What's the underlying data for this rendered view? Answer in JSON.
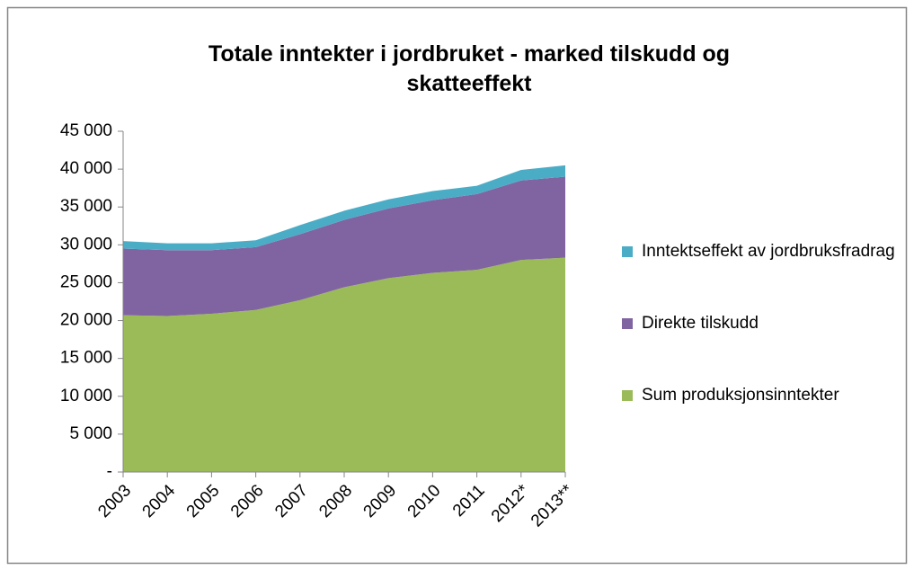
{
  "chart_data": {
    "type": "stacked_area",
    "title": "Totale inntekter i jordbruket - marked tilskudd og skatteeffekt",
    "categories": [
      "2003",
      "2004",
      "2005",
      "2006",
      "2007",
      "2008",
      "2009",
      "2010",
      "2011",
      "2012*",
      "2013**"
    ],
    "series": [
      {
        "name": "Sum produksjonsinntekter",
        "color": "#9bbb59",
        "values": [
          20700,
          20600,
          20900,
          21400,
          22700,
          24400,
          25600,
          26300,
          26700,
          28000,
          28300
        ]
      },
      {
        "name": "Direkte tilskudd",
        "color": "#8064a2",
        "values": [
          8800,
          8700,
          8400,
          8300,
          8700,
          8900,
          9200,
          9600,
          10000,
          10500,
          10700
        ]
      },
      {
        "name": "Inntektseffekt av jordbruksfradrag",
        "color": "#4bacc6",
        "values": [
          1000,
          900,
          900,
          900,
          1200,
          1200,
          1200,
          1200,
          1100,
          1400,
          1500
        ]
      }
    ],
    "ylim": [
      0,
      45000
    ],
    "yticks": [
      {
        "value": 0,
        "label": "-"
      },
      {
        "value": 5000,
        "label": "5 000"
      },
      {
        "value": 10000,
        "label": "10 000"
      },
      {
        "value": 15000,
        "label": "15 000"
      },
      {
        "value": 20000,
        "label": "20 000"
      },
      {
        "value": 25000,
        "label": "25 000"
      },
      {
        "value": 30000,
        "label": "30 000"
      },
      {
        "value": 35000,
        "label": "35 000"
      },
      {
        "value": 40000,
        "label": "40 000"
      },
      {
        "value": 45000,
        "label": "45 000"
      }
    ],
    "legend": "right"
  }
}
